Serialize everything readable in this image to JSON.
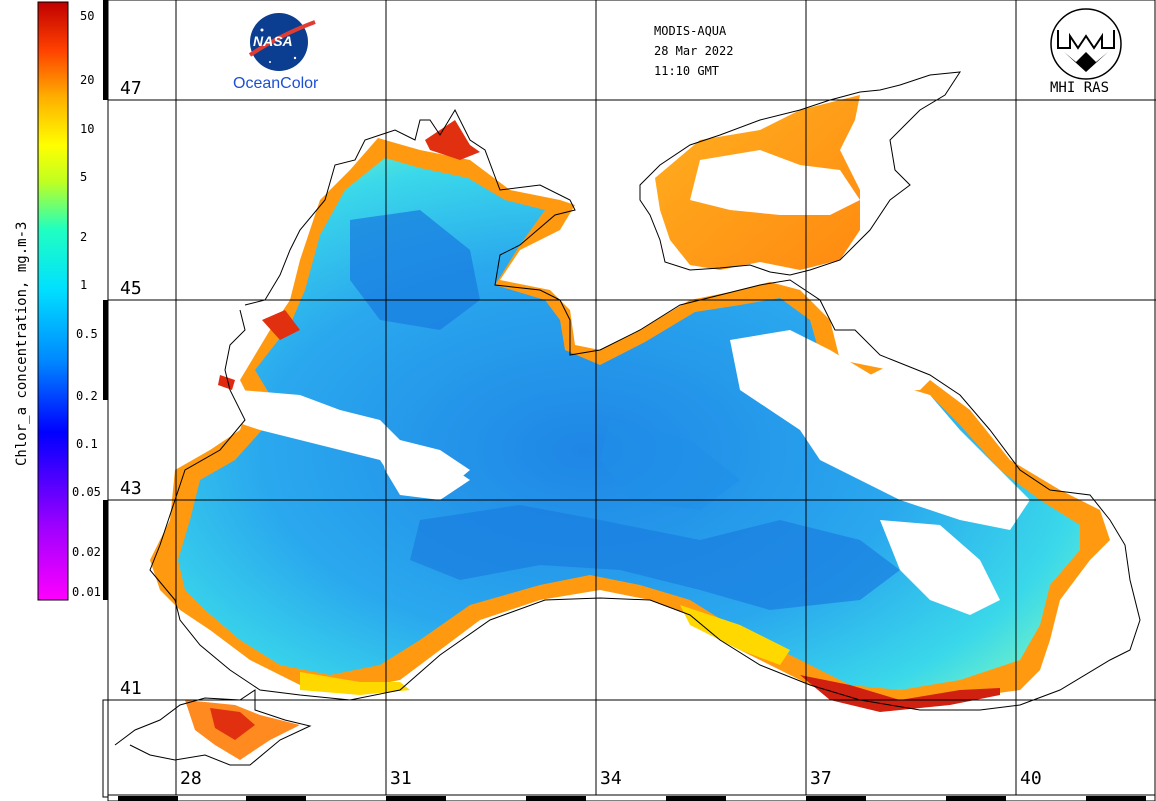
{
  "header": {
    "sensor": "MODIS-AQUA",
    "date": "28 Mar 2022",
    "time": "11:10 GMT"
  },
  "logos": {
    "nasa_text": "NASA",
    "oceancolor_text": "OceanColor",
    "mhi_text": "MHI RAS"
  },
  "colorbar": {
    "title": "Chlor_a concentration, mg.m-3",
    "ticks": [
      "50",
      "20",
      "10",
      "5",
      "2",
      "1",
      "0.5",
      "0.2",
      "0.1",
      "0.05",
      "0.02",
      "0.01"
    ],
    "scale": "log",
    "range": [
      0.01,
      50
    ],
    "colors": [
      "#ff00ff",
      "#7b00ff",
      "#0000ff",
      "#00a0ff",
      "#00ffff",
      "#00ff80",
      "#ffff00",
      "#ff9000",
      "#ff0000",
      "#a00000"
    ]
  },
  "grid": {
    "latitudes": [
      "47",
      "45",
      "43",
      "41"
    ],
    "longitudes": [
      "28",
      "31",
      "34",
      "37",
      "40"
    ]
  },
  "palette": {
    "land": "#ffffff",
    "no_data": "#ffffff",
    "sea_low": "#2090e8",
    "sea_mid": "#30d0f0",
    "coast_high": "#ffa000",
    "coast_very_high": "#e02000"
  }
}
